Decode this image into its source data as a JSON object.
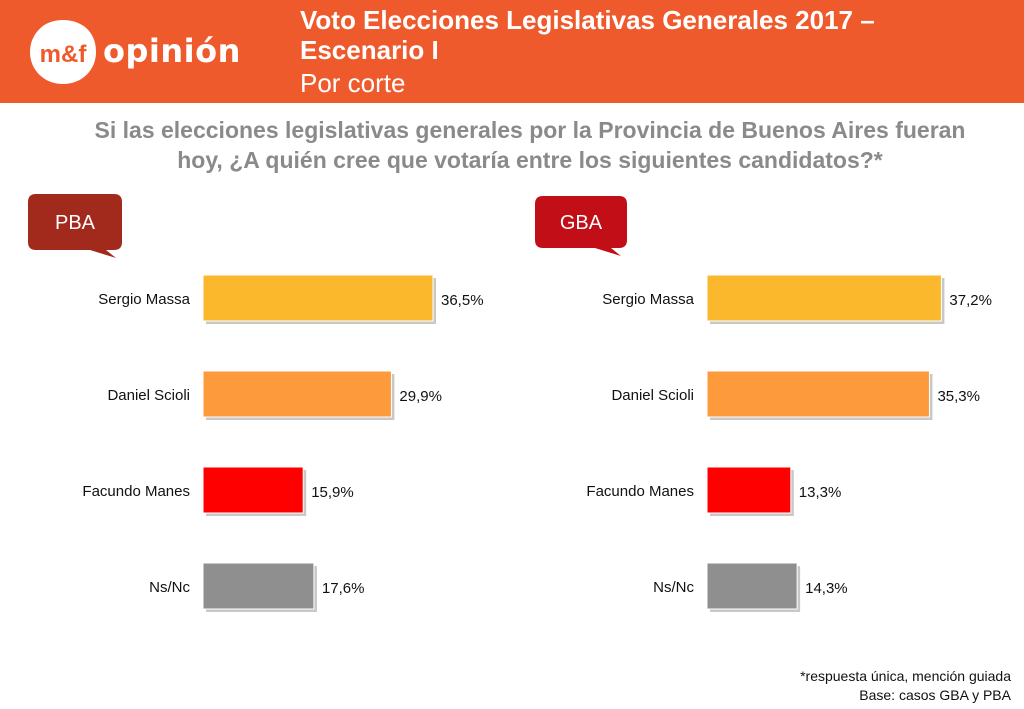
{
  "header": {
    "logo_text": "opinión",
    "logo_mark": "m&f",
    "title": "Voto Elecciones Legislativas Generales 2017 – Escenario I",
    "subtitle": "Por corte",
    "bg_color": "#ef5a2d"
  },
  "question": "Si las elecciones legislativas generales por la Provincia de Buenos Aires fueran hoy, ¿A quién cree que votaría entre los siguientes candidatos?*",
  "footnotes": {
    "note": "*respuesta única, mención guiada",
    "base": "Base: casos GBA y PBA"
  },
  "chart_data": [
    {
      "type": "bar",
      "orientation": "horizontal",
      "panel_label": "PBA",
      "panel_color": "#a22a1d",
      "categories": [
        "Sergio Massa",
        "Daniel Scioli",
        "Facundo Manes",
        "Ns/Nc"
      ],
      "values": [
        36.5,
        29.9,
        15.9,
        17.6
      ],
      "value_labels": [
        "36,5%",
        "29,9%",
        "15,9%",
        "17,6%"
      ],
      "colors": [
        "#fbb82d",
        "#fd9a3c",
        "#fe0000",
        "#8f8f8f"
      ],
      "xlim": [
        0,
        50
      ],
      "grid": false
    },
    {
      "type": "bar",
      "orientation": "horizontal",
      "panel_label": "GBA",
      "panel_color": "#c10e17",
      "categories": [
        "Sergio Massa",
        "Daniel Scioli",
        "Facundo Manes",
        "Ns/Nc"
      ],
      "values": [
        37.2,
        35.3,
        13.3,
        14.3
      ],
      "value_labels": [
        "37,2%",
        "35,3%",
        "13,3%",
        "14,3%"
      ],
      "colors": [
        "#fbb82d",
        "#fd9a3c",
        "#fe0000",
        "#8f8f8f"
      ],
      "xlim": [
        0,
        50
      ],
      "grid": false
    }
  ]
}
